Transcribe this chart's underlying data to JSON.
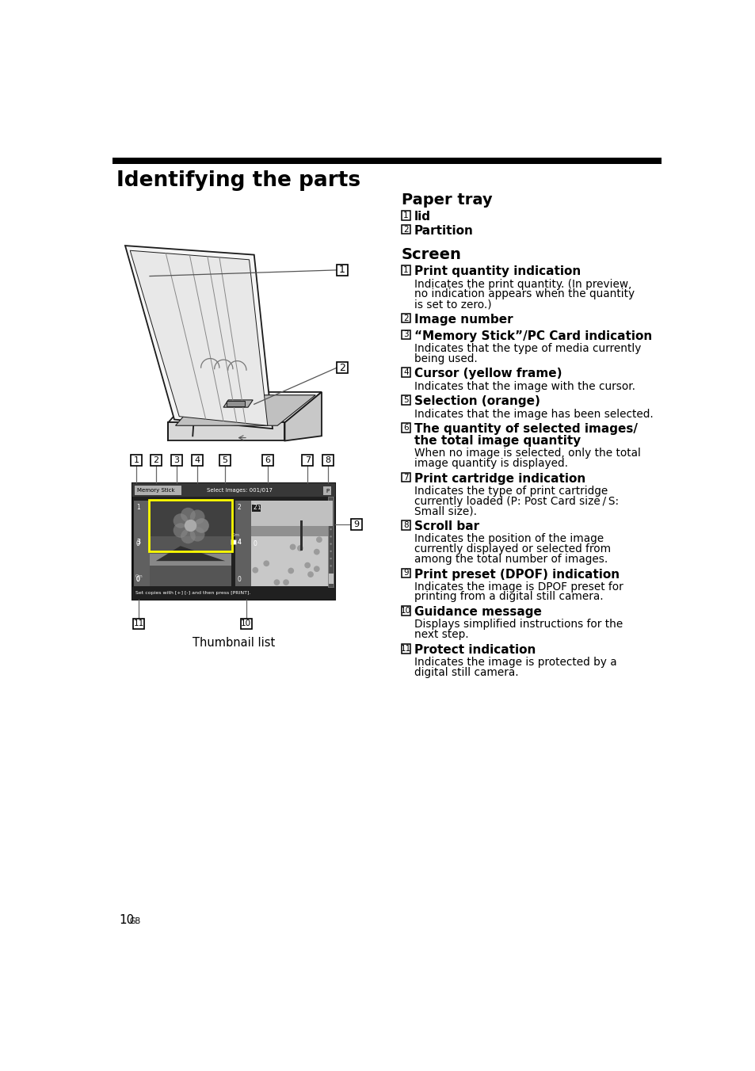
{
  "title": "Identifying the parts",
  "page_number": "10",
  "page_suffix": "GB",
  "background_color": "#ffffff",
  "header_bar_color": "#000000",
  "paper_tray_section": {
    "header": "Paper tray",
    "items": [
      {
        "num": "1",
        "bold": "lid",
        "normal": ""
      },
      {
        "num": "2",
        "bold": "Partition",
        "normal": ""
      }
    ]
  },
  "screen_section": {
    "header": "Screen",
    "items": [
      {
        "num": "1",
        "bold": "Print quantity indication",
        "normal": "Indicates the print quantity. (In preview,\nno indication appears when the quantity\nis set to zero.)"
      },
      {
        "num": "2",
        "bold": "Image number",
        "normal": ""
      },
      {
        "num": "3",
        "bold": "“Memory Stick”/PC Card indication",
        "normal": "Indicates that the type of media currently\nbeing used."
      },
      {
        "num": "4",
        "bold": "Cursor (yellow frame)",
        "normal": "Indicates that the image with the cursor."
      },
      {
        "num": "5",
        "bold": "Selection (orange)",
        "normal": "Indicates that the image has been selected."
      },
      {
        "num": "6",
        "bold": "The quantity of selected images/\nthe total image quantity",
        "normal": "When no image is selected, only the total\nimage quantity is displayed."
      },
      {
        "num": "7",
        "bold": "Print cartridge indication",
        "normal": "Indicates the type of print cartridge\ncurrently loaded (P: Post Card size / S:\nSmall size)."
      },
      {
        "num": "8",
        "bold": "Scroll bar",
        "normal": "Indicates the position of the image\ncurrently displayed or selected from\namong the total number of images."
      },
      {
        "num": "9",
        "bold": "Print preset (DPOF) indication",
        "normal": "Indicates the image is DPOF preset for\nprinting from a digital still camera."
      },
      {
        "num": "10",
        "bold": "Guidance message",
        "normal": "Displays simplified instructions for the\nnext step."
      },
      {
        "num": "11",
        "bold": "Protect indication",
        "normal": "Indicates the image is protected by a\ndigital still camera."
      }
    ]
  },
  "thumbnail_label": "Thumbnail list"
}
